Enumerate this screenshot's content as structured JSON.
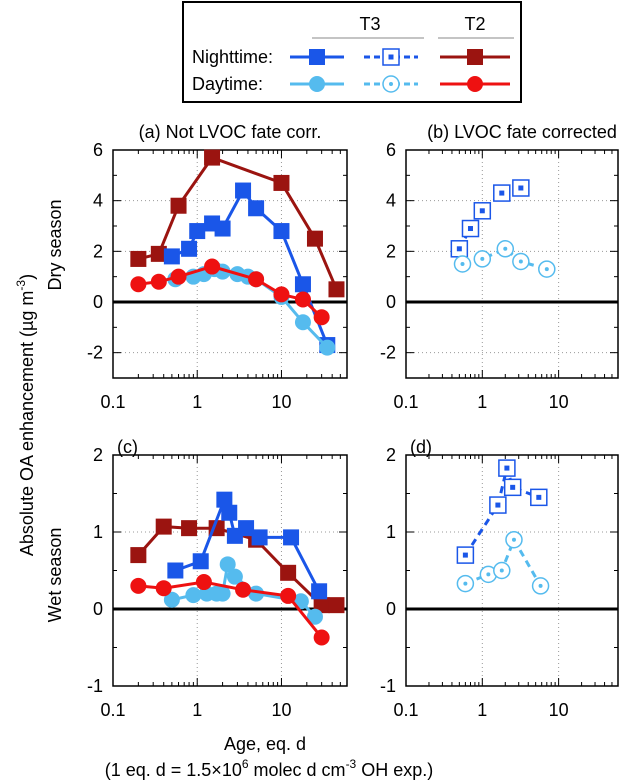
{
  "legend": {
    "col_T3": "T3",
    "col_T2": "T2",
    "row_night": "Nighttime:",
    "row_day": "Daytime:"
  },
  "shared_labels": {
    "ylabel_line1": "Absolute OA enhancement (µg m",
    "ylabel_sup": "-3",
    "ylabel_close": ")",
    "dry_season": "Dry season",
    "wet_season": "Wet season",
    "xlabel": "Age, eq. d",
    "footnote_a": "(1 eq. d = 1.5×10",
    "footnote_sup1": "6",
    "footnote_b": " molec d cm",
    "footnote_sup2": "-3",
    "footnote_c": " OH exp.)"
  },
  "colors": {
    "t3_night": "#1a56e8",
    "t3_day": "#55bbee",
    "t2_night": "#9b1410",
    "t2_day": "#ee1111"
  },
  "chart_data": [
    {
      "type": "line",
      "title": "(a) Not LVOC fate corr.",
      "xscale": "log",
      "xlim": [
        0.1,
        60
      ],
      "ylim": [
        -3,
        6
      ],
      "xticks": [
        "0.1",
        "1",
        "10"
      ],
      "yticks": [
        "-2",
        "0",
        "2",
        "4",
        "6"
      ],
      "grid": true,
      "series": [
        {
          "key": "t2_night",
          "marker": "square",
          "x": [
            0.2,
            0.35,
            0.6,
            1.5,
            10,
            25,
            45
          ],
          "y": [
            1.7,
            1.9,
            3.8,
            5.7,
            4.7,
            2.5,
            0.5
          ]
        },
        {
          "key": "t3_night",
          "marker": "square",
          "x": [
            0.5,
            0.8,
            1.0,
            1.5,
            2.0,
            3.5,
            5.0,
            10,
            18,
            35
          ],
          "y": [
            1.8,
            2.1,
            2.8,
            3.1,
            2.9,
            4.4,
            3.7,
            2.8,
            0.7,
            -1.7
          ]
        },
        {
          "key": "t3_day",
          "marker": "circle",
          "x": [
            0.55,
            0.9,
            1.2,
            1.6,
            2.0,
            3.0,
            4.0,
            5.0,
            10,
            18,
            35
          ],
          "y": [
            0.9,
            1.0,
            1.1,
            1.3,
            1.2,
            1.1,
            1.0,
            0.9,
            0.2,
            -0.8,
            -1.8
          ]
        },
        {
          "key": "t2_day",
          "marker": "circle",
          "x": [
            0.2,
            0.35,
            0.6,
            1.5,
            5.0,
            10,
            18,
            30
          ],
          "y": [
            0.7,
            0.8,
            1.0,
            1.4,
            0.9,
            0.3,
            0.1,
            -0.6
          ]
        }
      ]
    },
    {
      "type": "line",
      "title": "(b) LVOC fate corrected",
      "xscale": "log",
      "xlim": [
        0.1,
        60
      ],
      "ylim": [
        -3,
        6
      ],
      "xticks": [
        "0.1",
        "1",
        "10"
      ],
      "yticks": [
        "-2",
        "0",
        "2",
        "4",
        "6"
      ],
      "grid": true,
      "series": [
        {
          "key": "t3_night",
          "marker": "open-square",
          "dashed": true,
          "x": [
            0.5,
            0.7,
            1.0,
            1.8,
            3.2
          ],
          "y": [
            2.1,
            2.9,
            3.6,
            4.3,
            4.5
          ]
        },
        {
          "key": "t3_day",
          "marker": "open-circle",
          "dashed": true,
          "x": [
            0.55,
            1.0,
            2.0,
            3.2,
            7.0
          ],
          "y": [
            1.5,
            1.7,
            2.1,
            1.6,
            1.3
          ]
        }
      ]
    },
    {
      "type": "line",
      "title": "(c)",
      "xscale": "log",
      "xlim": [
        0.1,
        60
      ],
      "ylim": [
        -1,
        2
      ],
      "xticks": [
        "0.1",
        "1",
        "10"
      ],
      "yticks": [
        "-1",
        "0",
        "1",
        "2"
      ],
      "grid": true,
      "series": [
        {
          "key": "t2_night",
          "marker": "square",
          "x": [
            0.2,
            0.4,
            0.8,
            1.7,
            5.0,
            12,
            30,
            45
          ],
          "y": [
            0.7,
            1.07,
            1.05,
            1.05,
            0.9,
            0.47,
            0.05,
            0.05
          ]
        },
        {
          "key": "t3_night",
          "marker": "square",
          "x": [
            0.55,
            1.1,
            2.1,
            2.4,
            2.8,
            3.8,
            5.5,
            13,
            28
          ],
          "y": [
            0.5,
            0.62,
            1.42,
            1.25,
            0.95,
            1.05,
            0.93,
            0.93,
            0.23
          ]
        },
        {
          "key": "t3_day",
          "marker": "circle",
          "x": [
            0.5,
            0.9,
            1.3,
            1.7,
            2.0,
            2.3,
            2.8,
            5.0,
            17,
            25
          ],
          "y": [
            0.12,
            0.18,
            0.2,
            0.2,
            0.2,
            0.58,
            0.42,
            0.2,
            0.1,
            -0.1
          ]
        },
        {
          "key": "t2_day",
          "marker": "circle",
          "x": [
            0.2,
            0.4,
            1.2,
            3.5,
            12,
            30
          ],
          "y": [
            0.3,
            0.27,
            0.35,
            0.25,
            0.17,
            -0.37
          ]
        }
      ]
    },
    {
      "type": "line",
      "title": "(d)",
      "xscale": "log",
      "xlim": [
        0.1,
        60
      ],
      "ylim": [
        -1,
        2
      ],
      "xticks": [
        "0.1",
        "1",
        "10"
      ],
      "yticks": [
        "-1",
        "0",
        "1",
        "2"
      ],
      "grid": true,
      "series": [
        {
          "key": "t3_night",
          "marker": "open-square",
          "dashed": true,
          "x": [
            0.6,
            1.6,
            2.1,
            2.5,
            5.5
          ],
          "y": [
            0.7,
            1.35,
            1.83,
            1.58,
            1.45
          ]
        },
        {
          "key": "t3_day",
          "marker": "open-circle",
          "dashed": true,
          "x": [
            0.6,
            1.2,
            1.8,
            2.6,
            5.8
          ],
          "y": [
            0.33,
            0.45,
            0.5,
            0.9,
            0.3
          ]
        }
      ]
    }
  ]
}
